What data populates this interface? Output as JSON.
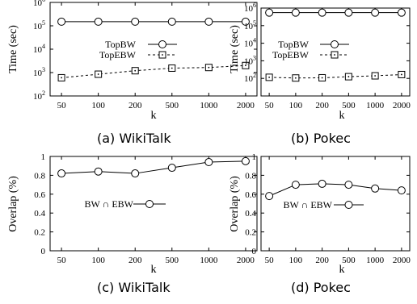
{
  "chart_data": [
    {
      "type": "line",
      "caption": "(a)  WikiTalk",
      "xlabel": "k",
      "ylabel": "Time (sec)",
      "categories": [
        "50",
        "100",
        "200",
        "500",
        "1000",
        "2000"
      ],
      "yscale": "log",
      "ylim": [
        100,
        1000000
      ],
      "yticks": [
        {
          "v": 100,
          "m": "10",
          "e": "2"
        },
        {
          "v": 1000,
          "m": "10",
          "e": "3"
        },
        {
          "v": 10000,
          "m": "10",
          "e": "4"
        },
        {
          "v": 100000,
          "m": "10",
          "e": "5"
        },
        {
          "v": 1000000,
          "m": "10",
          "e": "6"
        }
      ],
      "legend_position": "center",
      "series": [
        {
          "name": "TopBW",
          "marker": "circle",
          "style": "solid",
          "values": [
            150000,
            150000,
            150000,
            150000,
            150000,
            150000
          ]
        },
        {
          "name": "TopEBW",
          "marker": "square",
          "style": "dashed",
          "values": [
            600,
            850,
            1200,
            1550,
            1650,
            2000
          ]
        }
      ]
    },
    {
      "type": "line",
      "caption": "(b)  Pokec",
      "xlabel": "k",
      "ylabel": "Time (sec)",
      "categories": [
        "50",
        "100",
        "200",
        "500",
        "1000",
        "2000"
      ],
      "yscale": "log",
      "ylim": [
        10,
        1000000
      ],
      "yticks": [
        {
          "v": 100,
          "m": "10",
          "e": "2"
        },
        {
          "v": 1000,
          "m": "10",
          "e": "3"
        },
        {
          "v": 10000,
          "m": "10",
          "e": "4"
        },
        {
          "v": 100000,
          "m": "10",
          "e": "5"
        },
        {
          "v": 1000000,
          "m": "10",
          "e": "6"
        }
      ],
      "legend_position": "center",
      "series": [
        {
          "name": "TopBW",
          "marker": "circle",
          "style": "solid",
          "values": [
            550000,
            550000,
            550000,
            550000,
            550000,
            550000
          ]
        },
        {
          "name": "TopEBW",
          "marker": "square",
          "style": "dashed",
          "values": [
            115,
            105,
            108,
            125,
            140,
            165
          ]
        }
      ]
    },
    {
      "type": "line",
      "caption": "(c)  WikiTalk",
      "xlabel": "k",
      "ylabel": "Overlap (%)",
      "categories": [
        "50",
        "100",
        "200",
        "500",
        "1000",
        "2000"
      ],
      "yscale": "linear",
      "ylim": [
        0,
        1
      ],
      "yticks": [
        {
          "v": 0,
          "m": "0"
        },
        {
          "v": 0.2,
          "m": "0.2"
        },
        {
          "v": 0.4,
          "m": "0.4"
        },
        {
          "v": 0.6,
          "m": "0.6"
        },
        {
          "v": 0.8,
          "m": "0.8"
        },
        {
          "v": 1,
          "m": "1"
        }
      ],
      "legend_position": "center",
      "series": [
        {
          "name": "BW ∩ EBW",
          "marker": "circle",
          "style": "solid",
          "values": [
            0.82,
            0.84,
            0.82,
            0.88,
            0.94,
            0.95
          ]
        }
      ]
    },
    {
      "type": "line",
      "caption": "(d)  Pokec",
      "xlabel": "k",
      "ylabel": "Overlap (%)",
      "categories": [
        "50",
        "100",
        "200",
        "500",
        "1000",
        "2000"
      ],
      "yscale": "linear",
      "ylim": [
        0,
        1
      ],
      "yticks": [
        {
          "v": 0,
          "m": "0"
        },
        {
          "v": 0.2,
          "m": "0.2"
        },
        {
          "v": 0.4,
          "m": "0.4"
        },
        {
          "v": 0.6,
          "m": "0.6"
        },
        {
          "v": 0.8,
          "m": "0.8"
        },
        {
          "v": 1,
          "m": "1"
        }
      ],
      "legend_position": "center",
      "series": [
        {
          "name": "BW ∩ EBW",
          "marker": "circle",
          "style": "solid",
          "values": [
            0.58,
            0.7,
            0.71,
            0.7,
            0.66,
            0.64
          ]
        }
      ]
    }
  ]
}
